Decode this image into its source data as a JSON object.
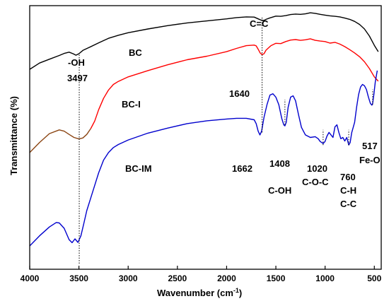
{
  "chart_data": {
    "type": "line",
    "xlabel_main": "Wavenumber (cm",
    "xlabel_sup": "-1",
    "xlabel_end": ")",
    "ylabel": "Transmittance (%)",
    "xlim": [
      4000,
      430
    ],
    "ylim": [
      0,
      100
    ],
    "x_reversed": true,
    "y_ticks_shown": false,
    "grid": false,
    "x_ticks": [
      4000,
      3500,
      3000,
      2500,
      2000,
      1500,
      1000,
      500
    ],
    "series": [
      {
        "name": "BC",
        "color": "#000000",
        "points": [
          [
            4000,
            77
          ],
          [
            3900,
            79.5
          ],
          [
            3800,
            81
          ],
          [
            3700,
            82.5
          ],
          [
            3650,
            83.3
          ],
          [
            3600,
            83.8
          ],
          [
            3560,
            83.2
          ],
          [
            3530,
            82.6
          ],
          [
            3500,
            83.2
          ],
          [
            3460,
            84.5
          ],
          [
            3400,
            85.6
          ],
          [
            3300,
            87.5
          ],
          [
            3200,
            89.3
          ],
          [
            3100,
            90.5
          ],
          [
            3000,
            91.5
          ],
          [
            2800,
            93
          ],
          [
            2600,
            94.3
          ],
          [
            2400,
            95.4
          ],
          [
            2200,
            96.2
          ],
          [
            2000,
            97
          ],
          [
            1900,
            97.5
          ],
          [
            1800,
            97.8
          ],
          [
            1720,
            97.7
          ],
          [
            1680,
            97
          ],
          [
            1650,
            96.5
          ],
          [
            1620,
            96.4
          ],
          [
            1600,
            96.8
          ],
          [
            1560,
            97.4
          ],
          [
            1500,
            98.1
          ],
          [
            1450,
            98
          ],
          [
            1400,
            98.3
          ],
          [
            1350,
            98.7
          ],
          [
            1300,
            98.9
          ],
          [
            1250,
            98.8
          ],
          [
            1200,
            99
          ],
          [
            1150,
            99.4
          ],
          [
            1100,
            99.2
          ],
          [
            1050,
            98.8
          ],
          [
            1000,
            98.5
          ],
          [
            950,
            98.2
          ],
          [
            900,
            98
          ],
          [
            850,
            97.8
          ],
          [
            800,
            97.3
          ],
          [
            750,
            96.8
          ],
          [
            700,
            96
          ],
          [
            650,
            94.8
          ],
          [
            600,
            93
          ],
          [
            550,
            90.2
          ],
          [
            500,
            86.5
          ],
          [
            460,
            84
          ]
        ]
      },
      {
        "name": "BC-I",
        "color": "#ff0000",
        "color_below": "#8b4513",
        "color_split_x": 3360,
        "points": [
          [
            4000,
            44
          ],
          [
            3900,
            48
          ],
          [
            3800,
            51.5
          ],
          [
            3700,
            53
          ],
          [
            3650,
            52.5
          ],
          [
            3600,
            51.2
          ],
          [
            3550,
            50
          ],
          [
            3500,
            49.4
          ],
          [
            3460,
            49.8
          ],
          [
            3420,
            51.2
          ],
          [
            3380,
            53.5
          ],
          [
            3340,
            56.5
          ],
          [
            3300,
            61
          ],
          [
            3250,
            65.5
          ],
          [
            3200,
            68.8
          ],
          [
            3150,
            71
          ],
          [
            3100,
            72.2
          ],
          [
            3000,
            74
          ],
          [
            2800,
            76.5
          ],
          [
            2600,
            78.8
          ],
          [
            2400,
            80.8
          ],
          [
            2200,
            82.2
          ],
          [
            2000,
            84
          ],
          [
            1900,
            85.3
          ],
          [
            1800,
            86.4
          ],
          [
            1720,
            86.6
          ],
          [
            1700,
            86.3
          ],
          [
            1680,
            85
          ],
          [
            1660,
            83.5
          ],
          [
            1640,
            82.8
          ],
          [
            1620,
            83.2
          ],
          [
            1600,
            84.6
          ],
          [
            1550,
            86.4
          ],
          [
            1500,
            87.3
          ],
          [
            1450,
            87.2
          ],
          [
            1400,
            88
          ],
          [
            1350,
            88.6
          ],
          [
            1300,
            88.8
          ],
          [
            1250,
            88.5
          ],
          [
            1200,
            88.7
          ],
          [
            1150,
            89.1
          ],
          [
            1100,
            88.5
          ],
          [
            1050,
            88.2
          ],
          [
            1000,
            88
          ],
          [
            950,
            87.4
          ],
          [
            900,
            87.7
          ],
          [
            850,
            87
          ],
          [
            800,
            86
          ],
          [
            750,
            84.8
          ],
          [
            700,
            83.5
          ],
          [
            650,
            82
          ],
          [
            600,
            80
          ],
          [
            550,
            77.3
          ],
          [
            500,
            74
          ],
          [
            460,
            72.3
          ]
        ]
      },
      {
        "name": "BC-IM",
        "color": "#0000cd",
        "points": [
          [
            4000,
            7
          ],
          [
            3900,
            11
          ],
          [
            3800,
            14.5
          ],
          [
            3730,
            16.3
          ],
          [
            3700,
            16.1
          ],
          [
            3650,
            14
          ],
          [
            3600,
            9.5
          ],
          [
            3570,
            8.3
          ],
          [
            3540,
            9.8
          ],
          [
            3510,
            8.4
          ],
          [
            3480,
            11
          ],
          [
            3450,
            16
          ],
          [
            3420,
            21
          ],
          [
            3380,
            26
          ],
          [
            3340,
            31
          ],
          [
            3300,
            36
          ],
          [
            3250,
            41
          ],
          [
            3200,
            44
          ],
          [
            3150,
            46
          ],
          [
            3100,
            47.2
          ],
          [
            3000,
            49
          ],
          [
            2800,
            51.7
          ],
          [
            2600,
            53.7
          ],
          [
            2400,
            55.5
          ],
          [
            2200,
            56.6
          ],
          [
            2000,
            57.3
          ],
          [
            1900,
            57.6
          ],
          [
            1800,
            57.6
          ],
          [
            1720,
            57
          ],
          [
            1700,
            55.5
          ],
          [
            1680,
            52.5
          ],
          [
            1662,
            51
          ],
          [
            1645,
            52.5
          ],
          [
            1620,
            58
          ],
          [
            1590,
            63
          ],
          [
            1560,
            66.8
          ],
          [
            1530,
            67.3
          ],
          [
            1500,
            66
          ],
          [
            1470,
            63
          ],
          [
            1440,
            57.5
          ],
          [
            1420,
            55
          ],
          [
            1408,
            54.6
          ],
          [
            1395,
            56
          ],
          [
            1375,
            62
          ],
          [
            1350,
            66
          ],
          [
            1325,
            66.5
          ],
          [
            1300,
            64.5
          ],
          [
            1270,
            59
          ],
          [
            1240,
            54
          ],
          [
            1200,
            51
          ],
          [
            1150,
            50
          ],
          [
            1100,
            50.3
          ],
          [
            1070,
            49.5
          ],
          [
            1050,
            48.4
          ],
          [
            1020,
            47.6
          ],
          [
            1000,
            48.4
          ],
          [
            980,
            50.6
          ],
          [
            960,
            52
          ],
          [
            940,
            51
          ],
          [
            920,
            50
          ],
          [
            900,
            54.2
          ],
          [
            880,
            55
          ],
          [
            860,
            52
          ],
          [
            840,
            49.5
          ],
          [
            820,
            50
          ],
          [
            800,
            48.6
          ],
          [
            780,
            50
          ],
          [
            760,
            47
          ],
          [
            745,
            48
          ],
          [
            730,
            51.8
          ],
          [
            700,
            56
          ],
          [
            680,
            62
          ],
          [
            660,
            67
          ],
          [
            640,
            70
          ],
          [
            620,
            71
          ],
          [
            600,
            70.5
          ],
          [
            580,
            69
          ],
          [
            560,
            66
          ],
          [
            540,
            63.5
          ],
          [
            525,
            62.8
          ],
          [
            517,
            63.5
          ],
          [
            505,
            67
          ],
          [
            490,
            72
          ],
          [
            470,
            76.5
          ]
        ]
      }
    ],
    "labels": {
      "curve_names": [
        "BC",
        "BC-I",
        "BC-IM"
      ],
      "peaks": [
        {
          "text": "-OH",
          "x": 3497
        },
        {
          "text": "3497",
          "x": 3497
        },
        {
          "text": "C=C",
          "x": 1640
        },
        {
          "text": "1640",
          "x": 1640
        },
        {
          "text": "1662",
          "x": 1662
        },
        {
          "text": "1408",
          "x": 1408
        },
        {
          "text": "C-OH",
          "x": 1408
        },
        {
          "text": "1020",
          "x": 1020
        },
        {
          "text": "C-O-C",
          "x": 1020
        },
        {
          "text": "760",
          "x": 760
        },
        {
          "text": "C-H",
          "x": 760
        },
        {
          "text": "C-C",
          "x": 760
        },
        {
          "text": "517",
          "x": 517
        },
        {
          "text": "Fe-O",
          "x": 517
        }
      ]
    },
    "markers": [
      {
        "x": 3497,
        "y_from": 0,
        "y_to": 83
      },
      {
        "x": 1640,
        "y_from": 52,
        "y_to": 98
      },
      {
        "x": 1408,
        "y_from": 55,
        "y_to": 65
      },
      {
        "x": 1020,
        "y_from": 47,
        "y_to": 53
      },
      {
        "x": 760,
        "y_from": 47,
        "y_to": 53
      },
      {
        "x": 517,
        "y_from": 63,
        "y_to": 69
      }
    ]
  }
}
